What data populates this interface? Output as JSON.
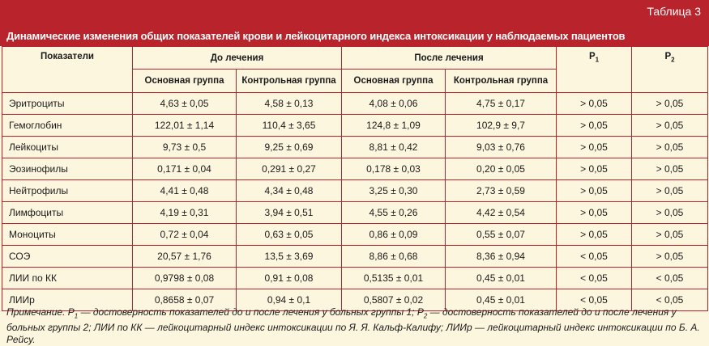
{
  "table_number": "Таблица 3",
  "title": "Динамические изменения общих показателей крови и лейкоцитарного индекса интоксикации у наблюдаемых пациентов",
  "headers": {
    "indicator": "Показатели",
    "before": "До лечения",
    "after": "После лечения",
    "p1_base": "P",
    "p1_sub": "1",
    "p2_base": "P",
    "p2_sub": "2",
    "main_group": "Основная группа",
    "control_group": "Контрольная группа"
  },
  "rows": [
    {
      "name": "Эритроциты",
      "before_main": "4,63 ± 0,05",
      "before_control": "4,58 ± 0,13",
      "after_main": "4,08 ± 0,06",
      "after_control": "4,75 ± 0,17",
      "p1": "> 0,05",
      "p2": "> 0,05"
    },
    {
      "name": "Гемоглобин",
      "before_main": "122,01 ± 1,14",
      "before_control": "110,4 ± 3,65",
      "after_main": "124,8 ± 1,09",
      "after_control": "102,9 ± 9,7",
      "p1": "> 0,05",
      "p2": "> 0,05"
    },
    {
      "name": "Лейкоциты",
      "before_main": "9,73 ± 0,5",
      "before_control": "9,25 ± 0,69",
      "after_main": "8,81 ± 0,42",
      "after_control": "9,03 ± 0,76",
      "p1": "> 0,05",
      "p2": "> 0,05"
    },
    {
      "name": "Эозинофилы",
      "before_main": "0,171 ± 0,04",
      "before_control": "0,291 ± 0,27",
      "after_main": "0,178 ± 0,03",
      "after_control": "0,20 ± 0,05",
      "p1": "> 0,05",
      "p2": "> 0,05"
    },
    {
      "name": "Нейтрофилы",
      "before_main": "4,41 ± 0,48",
      "before_control": "4,34 ± 0,48",
      "after_main": "3,25 ± 0,30",
      "after_control": "2,73 ± 0,59",
      "p1": "> 0,05",
      "p2": "> 0,05"
    },
    {
      "name": "Лимфоциты",
      "before_main": "4,19 ± 0,31",
      "before_control": "3,94 ± 0,51",
      "after_main": "4,55 ± 0,26",
      "after_control": "4,42 ± 0,54",
      "p1": "> 0,05",
      "p2": "> 0,05"
    },
    {
      "name": "Моноциты",
      "before_main": "0,72 ± 0,04",
      "before_control": "0,63 ± 0,05",
      "after_main": "0,86 ± 0,09",
      "after_control": "0,55 ± 0,07",
      "p1": "> 0,05",
      "p2": "> 0,05"
    },
    {
      "name": "СОЭ",
      "before_main": "20,57 ± 1,76",
      "before_control": "13,5 ± 3,69",
      "after_main": "8,86 ± 0,68",
      "after_control": "8,36 ± 0,94",
      "p1": "< 0,05",
      "p2": "> 0,05"
    },
    {
      "name": "ЛИИ по КК",
      "before_main": "0,9798 ± 0,08",
      "before_control": "0,91 ± 0,08",
      "after_main": "0,5135 ± 0,01",
      "after_control": "0,45 ± 0,01",
      "p1": "< 0,05",
      "p2": "< 0,05"
    },
    {
      "name": "ЛИИр",
      "before_main": "0,8658 ± 0,07",
      "before_control": "0,94 ± 0,1",
      "after_main": "0,5807 ± 0,02",
      "after_control": "0,45 ± 0,01",
      "p1": "< 0,05",
      "p2": "< 0,05"
    }
  ],
  "note": {
    "lead": "Примечание. P",
    "sub1": "1",
    "mid": " — достоверность показателей до и после лечения у больных группы 1; P",
    "sub2": "2",
    "tail": " — достоверность показателей до и после лечения у больных группы 2; ЛИИ по КК — лейкоцитарный индекс интоксикации по Я. Я. Кальф-Калифу; ЛИИр — лейкоцитарный индекс интоксикации по Б. А. Рейсу."
  },
  "colors": {
    "accent": "#b8232c",
    "background": "#fdf6df"
  }
}
